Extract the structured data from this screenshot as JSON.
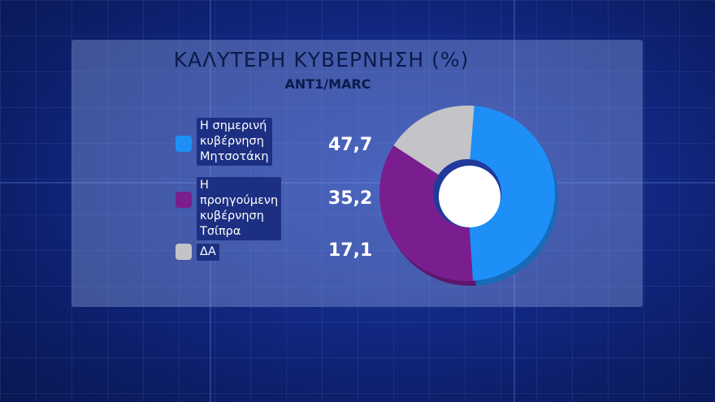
{
  "chart_data": {
    "type": "pie",
    "title": "ΚΑΛΥΤΕΡΗ ΚΥΒΕΡΝΗΣΗ (%)",
    "subtitle": "ANT1/MARC",
    "series": [
      {
        "label": "Η σημερινή\nκυβέρνηση\nΜητσοτάκη",
        "value": 47.7,
        "value_label": "47,7",
        "color": "#1e8ff7"
      },
      {
        "label": "Η προηγούμενη\nκυβέρνηση\nΤσίπρα",
        "value": 35.2,
        "value_label": "35,2",
        "color": "#7a1e8f"
      },
      {
        "label": "ΔΑ",
        "value": 17.1,
        "value_label": "17,1",
        "color": "#c4c4c8"
      }
    ]
  }
}
